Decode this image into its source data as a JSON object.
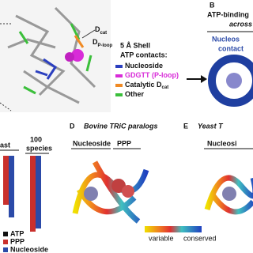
{
  "panel_a": {
    "labels": {
      "d_cat": "D",
      "d_cat_sub": "cat",
      "d_ploop": "D",
      "d_ploop_sub": "P-loop"
    },
    "legend": {
      "title_1": "5 Å Shell",
      "title_2": "ATP contacts:",
      "items": [
        {
          "text": "Nucleoside",
          "color": "#2b3fbf"
        },
        {
          "text": "GDGTT (P-loop)",
          "color": "#d82bd8"
        },
        {
          "text": "Catalytic D",
          "sub": "cat",
          "color": "#f08a24"
        },
        {
          "text": "Other",
          "color": "#3bbf3b"
        }
      ]
    }
  },
  "panel_b": {
    "letter": "B",
    "title": "ATP-binding",
    "subtitle": "across",
    "ring_text_1": "Nucleos",
    "ring_text_2": "contact"
  },
  "panel_c": {
    "group_1": "ast",
    "group_2_line_1": "100",
    "group_2_line_2": "species",
    "legend": [
      {
        "text": "ATP",
        "color": "#111111"
      },
      {
        "text": "PPP",
        "color": "#c9302c"
      },
      {
        "text": "Nucleoside",
        "color": "#2b4aa8"
      }
    ]
  },
  "panel_d": {
    "letter": "D",
    "title": "Bovine TRiC paralogs",
    "bracket_1": "Nucleoside",
    "bracket_2": "PPP",
    "scale_low": "variable",
    "scale_high": "conserved"
  },
  "panel_e": {
    "letter": "E",
    "title": "Yeast T",
    "bracket_1": "Nucleosi"
  }
}
